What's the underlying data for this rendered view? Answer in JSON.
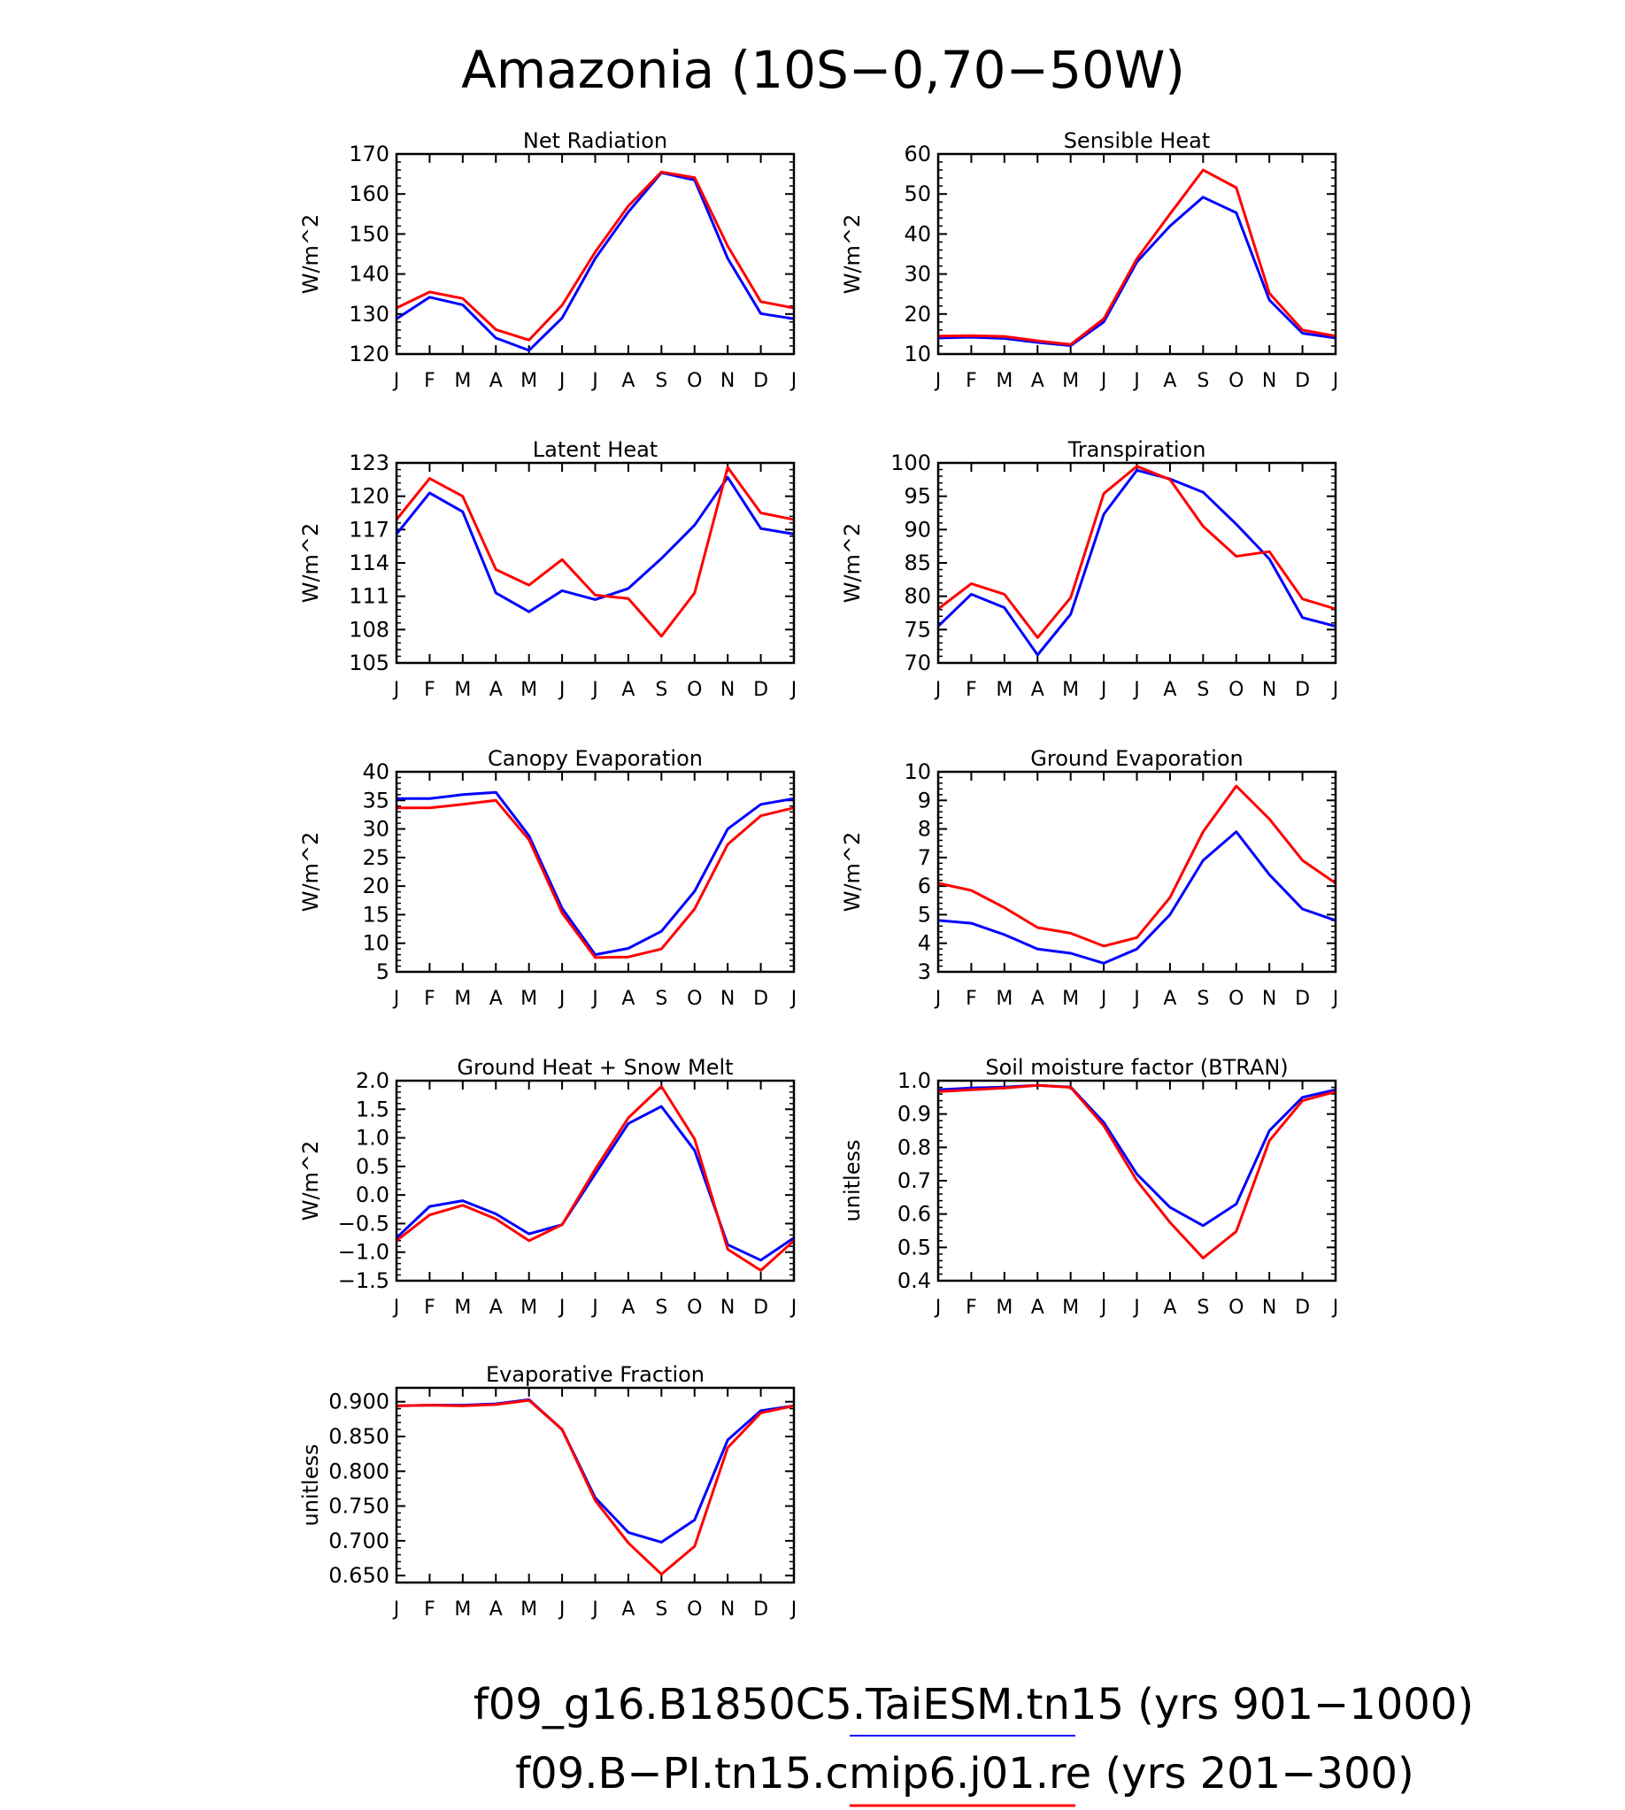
{
  "title": "Amazonia (10S−0,70−50W)",
  "legend": [
    {
      "label": "f09_g16.B1850C5.TaiESM.tn15 (yrs 901−1000)",
      "color": "#0000ff"
    },
    {
      "label": "f09.B−PI.tn15.cmip6.j01.re (yrs 201−300)",
      "color": "#ff0000"
    }
  ],
  "colors": {
    "series_a": "#0000ff",
    "series_b": "#ff0000"
  },
  "chart_data": [
    {
      "type": "line",
      "title": "Net Radiation",
      "ylabel": "W/m^2",
      "categories": [
        "J",
        "F",
        "M",
        "A",
        "M",
        "J",
        "J",
        "A",
        "S",
        "O",
        "N",
        "D",
        "J"
      ],
      "ylim": [
        120,
        170
      ],
      "yticks": [
        "120",
        "130",
        "140",
        "150",
        "160",
        "170"
      ],
      "series": [
        {
          "name": "f09_g16.B1850C5.TaiESM.tn15 (yrs 901−1000)",
          "color": "#0000ff",
          "values": [
            128.8,
            134.2,
            132.3,
            124.0,
            120.9,
            129.0,
            143.9,
            155.5,
            165.3,
            163.5,
            143.9,
            130.1,
            128.8
          ]
        },
        {
          "name": "f09.B−PI.tn15.cmip6.j01.re (yrs 201−300)",
          "color": "#ff0000",
          "values": [
            131.5,
            135.5,
            133.9,
            126.1,
            123.5,
            132.2,
            145.5,
            157.0,
            165.5,
            164.1,
            147.0,
            133.1,
            131.5
          ]
        }
      ]
    },
    {
      "type": "line",
      "title": "Sensible Heat",
      "ylabel": "W/m^2",
      "categories": [
        "J",
        "F",
        "M",
        "A",
        "M",
        "J",
        "J",
        "A",
        "S",
        "O",
        "N",
        "D",
        "J"
      ],
      "ylim": [
        10,
        60
      ],
      "yticks": [
        "10",
        "20",
        "30",
        "40",
        "50",
        "60"
      ],
      "series": [
        {
          "name": "f09_g16.B1850C5.TaiESM.tn15 (yrs 901−1000)",
          "color": "#0000ff",
          "values": [
            14.0,
            14.2,
            13.9,
            12.9,
            12.1,
            18.0,
            33.0,
            42.0,
            49.2,
            45.3,
            23.5,
            15.2,
            14.0
          ]
        },
        {
          "name": "f09.B−PI.tn15.cmip6.j01.re (yrs 201−300)",
          "color": "#ff0000",
          "values": [
            14.5,
            14.6,
            14.4,
            13.3,
            12.4,
            18.8,
            33.8,
            45.0,
            56.0,
            51.6,
            25.2,
            16.0,
            14.5
          ]
        }
      ]
    },
    {
      "type": "line",
      "title": "Latent Heat",
      "ylabel": "W/m^2",
      "categories": [
        "J",
        "F",
        "M",
        "A",
        "M",
        "J",
        "J",
        "A",
        "S",
        "O",
        "N",
        "D",
        "J"
      ],
      "ylim": [
        105,
        123
      ],
      "yticks": [
        "105",
        "108",
        "111",
        "114",
        "117",
        "120",
        "123"
      ],
      "series": [
        {
          "name": "f09_g16.B1850C5.TaiESM.tn15 (yrs 901−1000)",
          "color": "#0000ff",
          "values": [
            116.6,
            120.3,
            118.6,
            111.3,
            109.6,
            111.5,
            110.7,
            111.7,
            114.4,
            117.4,
            121.7,
            117.1,
            116.6
          ]
        },
        {
          "name": "f09.B−PI.tn15.cmip6.j01.re (yrs 201−300)",
          "color": "#ff0000",
          "values": [
            117.9,
            121.6,
            120.0,
            113.4,
            112.0,
            114.3,
            111.1,
            110.8,
            107.4,
            111.3,
            122.6,
            118.5,
            117.9
          ]
        }
      ]
    },
    {
      "type": "line",
      "title": "Transpiration",
      "ylabel": "W/m^2",
      "categories": [
        "J",
        "F",
        "M",
        "A",
        "M",
        "J",
        "J",
        "A",
        "S",
        "O",
        "N",
        "D",
        "J"
      ],
      "ylim": [
        70,
        100
      ],
      "yticks": [
        "70",
        "75",
        "80",
        "85",
        "90",
        "95",
        "100"
      ],
      "series": [
        {
          "name": "f09_g16.B1850C5.TaiESM.tn15 (yrs 901−1000)",
          "color": "#0000ff",
          "values": [
            75.5,
            80.3,
            78.3,
            71.2,
            77.3,
            92.3,
            98.9,
            97.6,
            95.6,
            90.8,
            85.6,
            76.8,
            75.5
          ]
        },
        {
          "name": "f09.B−PI.tn15.cmip6.j01.re (yrs 201−300)",
          "color": "#ff0000",
          "values": [
            78.1,
            81.9,
            80.3,
            73.8,
            79.8,
            95.4,
            99.5,
            97.5,
            90.5,
            86.0,
            86.7,
            79.6,
            78.1
          ]
        }
      ]
    },
    {
      "type": "line",
      "title": "Canopy Evaporation",
      "ylabel": "W/m^2",
      "categories": [
        "J",
        "F",
        "M",
        "A",
        "M",
        "J",
        "J",
        "A",
        "S",
        "O",
        "N",
        "D",
        "J"
      ],
      "ylim": [
        5,
        40
      ],
      "yticks": [
        "5",
        "10",
        "15",
        "20",
        "25",
        "30",
        "35",
        "40"
      ],
      "series": [
        {
          "name": "f09_g16.B1850C5.TaiESM.tn15 (yrs 901−1000)",
          "color": "#0000ff",
          "values": [
            35.3,
            35.3,
            36.0,
            36.4,
            28.8,
            16.1,
            8.0,
            9.1,
            12.1,
            19.1,
            30.0,
            34.3,
            35.3
          ]
        },
        {
          "name": "f09.B−PI.tn15.cmip6.j01.re (yrs 201−300)",
          "color": "#ff0000",
          "values": [
            33.7,
            33.7,
            34.3,
            35.0,
            28.1,
            15.3,
            7.5,
            7.6,
            9.0,
            16.0,
            27.3,
            32.3,
            33.7
          ]
        }
      ]
    },
    {
      "type": "line",
      "title": "Ground Evaporation",
      "ylabel": "W/m^2",
      "categories": [
        "J",
        "F",
        "M",
        "A",
        "M",
        "J",
        "J",
        "A",
        "S",
        "O",
        "N",
        "D",
        "J"
      ],
      "ylim": [
        3,
        10
      ],
      "yticks": [
        "3",
        "4",
        "5",
        "6",
        "7",
        "8",
        "9",
        "10"
      ],
      "series": [
        {
          "name": "f09_g16.B1850C5.TaiESM.tn15 (yrs 901−1000)",
          "color": "#0000ff",
          "values": [
            4.8,
            4.7,
            4.3,
            3.8,
            3.65,
            3.3,
            3.8,
            5.0,
            6.9,
            7.9,
            6.4,
            5.2,
            4.8
          ]
        },
        {
          "name": "f09.B−PI.tn15.cmip6.j01.re (yrs 201−300)",
          "color": "#ff0000",
          "values": [
            6.1,
            5.85,
            5.25,
            4.55,
            4.35,
            3.9,
            4.2,
            5.6,
            7.9,
            9.5,
            8.35,
            6.9,
            6.1
          ]
        }
      ]
    },
    {
      "type": "line",
      "title": "Ground Heat + Snow Melt",
      "ylabel": "W/m^2",
      "categories": [
        "J",
        "F",
        "M",
        "A",
        "M",
        "J",
        "J",
        "A",
        "S",
        "O",
        "N",
        "D",
        "J"
      ],
      "ylim": [
        -1.5,
        2.0
      ],
      "yticks": [
        "−1.5",
        "−1.0",
        "−0.5",
        "0.0",
        "0.5",
        "1.0",
        "1.5",
        "2.0"
      ],
      "series": [
        {
          "name": "f09_g16.B1850C5.TaiESM.tn15 (yrs 901−1000)",
          "color": "#0000ff",
          "values": [
            -0.75,
            -0.2,
            -0.1,
            -0.33,
            -0.68,
            -0.52,
            0.37,
            1.25,
            1.55,
            0.78,
            -0.87,
            -1.14,
            -0.75
          ]
        },
        {
          "name": "f09.B−PI.tn15.cmip6.j01.re (yrs 201−300)",
          "color": "#ff0000",
          "values": [
            -0.8,
            -0.35,
            -0.18,
            -0.42,
            -0.8,
            -0.52,
            0.45,
            1.35,
            1.9,
            0.98,
            -0.95,
            -1.32,
            -0.8
          ]
        }
      ]
    },
    {
      "type": "line",
      "title": "Soil moisture factor (BTRAN)",
      "ylabel": "unitless",
      "categories": [
        "J",
        "F",
        "M",
        "A",
        "M",
        "J",
        "J",
        "A",
        "S",
        "O",
        "N",
        "D",
        "J"
      ],
      "ylim": [
        0.4,
        1.0
      ],
      "yticks": [
        "0.4",
        "0.5",
        "0.6",
        "0.7",
        "0.8",
        "0.9",
        "1.0"
      ],
      "series": [
        {
          "name": "f09_g16.B1850C5.TaiESM.tn15 (yrs 901−1000)",
          "color": "#0000ff",
          "values": [
            0.973,
            0.978,
            0.981,
            0.986,
            0.981,
            0.875,
            0.72,
            0.62,
            0.565,
            0.63,
            0.85,
            0.95,
            0.973
          ]
        },
        {
          "name": "f09.B−PI.tn15.cmip6.j01.re (yrs 201−300)",
          "color": "#ff0000",
          "values": [
            0.967,
            0.973,
            0.978,
            0.986,
            0.98,
            0.865,
            0.7,
            0.575,
            0.468,
            0.548,
            0.82,
            0.94,
            0.967
          ]
        }
      ]
    },
    {
      "type": "line",
      "title": "Evaporative Fraction",
      "ylabel": "unitless",
      "categories": [
        "J",
        "F",
        "M",
        "A",
        "M",
        "J",
        "J",
        "A",
        "S",
        "O",
        "N",
        "D",
        "J"
      ],
      "ylim": [
        0.64,
        0.92
      ],
      "yticks": [
        "0.650",
        "0.700",
        "0.750",
        "0.800",
        "0.850",
        "0.900"
      ],
      "ytick_values": [
        0.65,
        0.7,
        0.75,
        0.8,
        0.85,
        0.9
      ],
      "series": [
        {
          "name": "f09_g16.B1850C5.TaiESM.tn15 (yrs 901−1000)",
          "color": "#0000ff",
          "values": [
            0.894,
            0.895,
            0.895,
            0.897,
            0.903,
            0.86,
            0.762,
            0.712,
            0.698,
            0.73,
            0.845,
            0.887,
            0.894
          ]
        },
        {
          "name": "f09.B−PI.tn15.cmip6.j01.re (yrs 201−300)",
          "color": "#ff0000",
          "values": [
            0.894,
            0.895,
            0.894,
            0.896,
            0.902,
            0.86,
            0.758,
            0.697,
            0.652,
            0.692,
            0.834,
            0.884,
            0.894
          ]
        }
      ]
    }
  ]
}
